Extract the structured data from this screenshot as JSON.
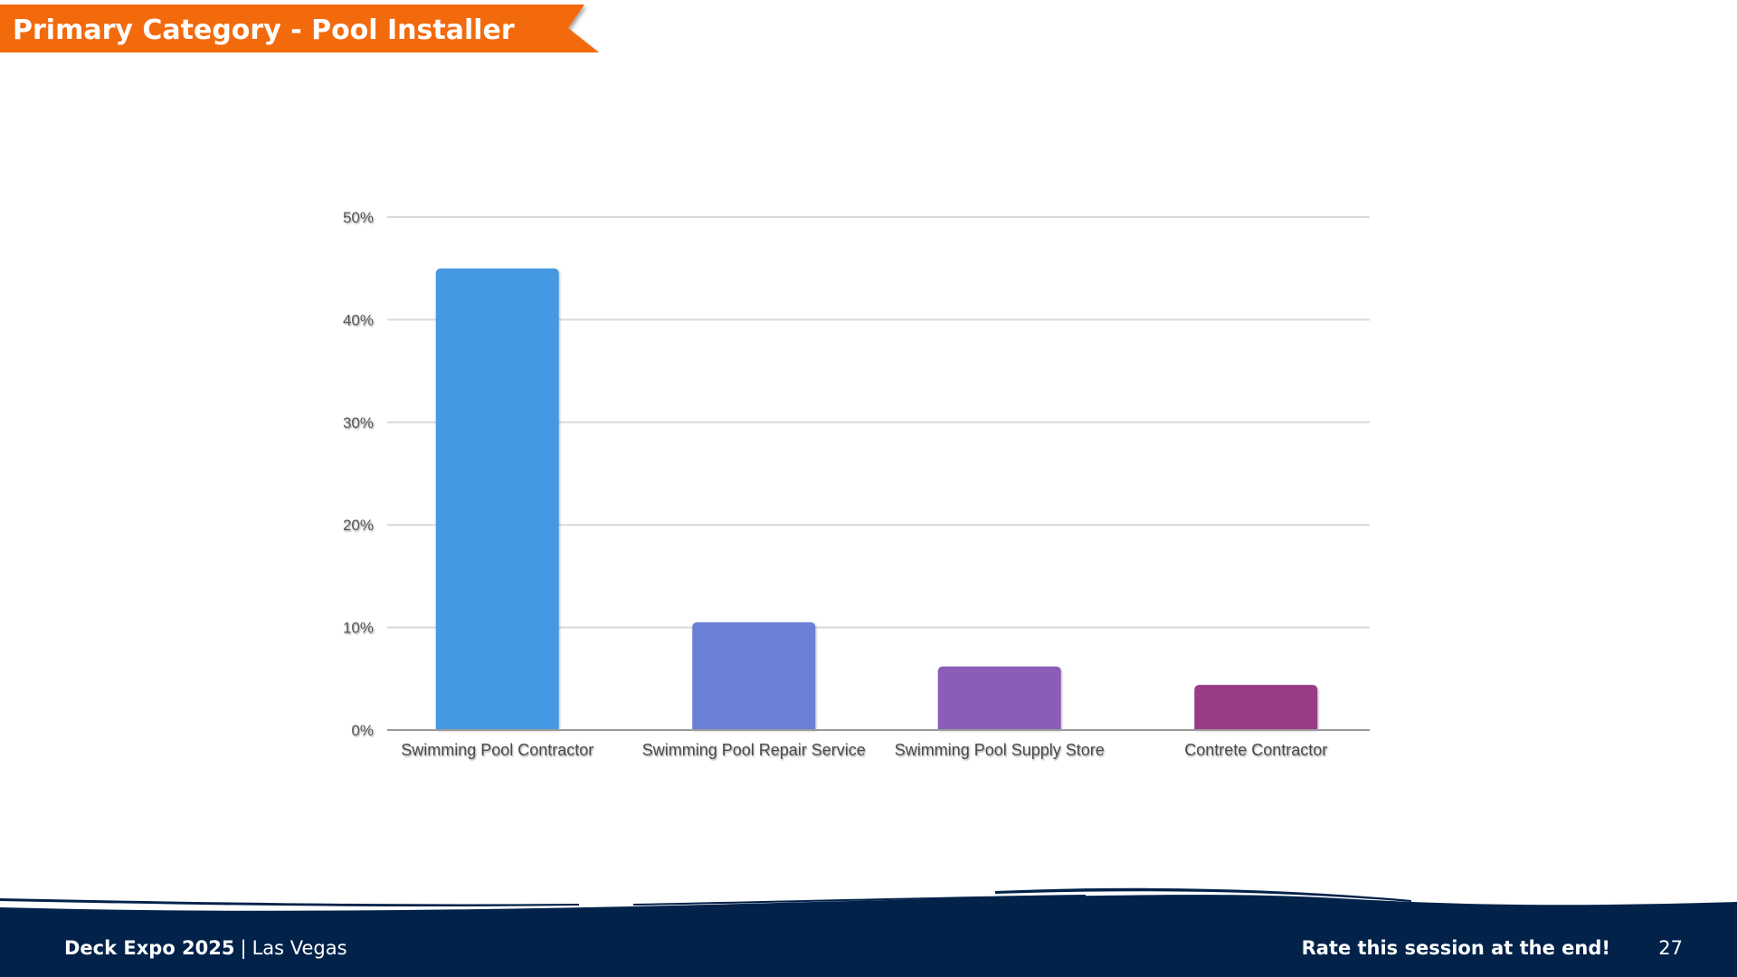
{
  "slide": {
    "title": "Primary Category - Pool Installer",
    "colors": {
      "banner": "#f36a0c",
      "footer": "#02224a"
    }
  },
  "chart_data": {
    "type": "bar",
    "categories": [
      "Swimming Pool Contractor",
      "Swimming Pool Repair Service",
      "Swimming Pool Supply Store",
      "Contrete Contractor"
    ],
    "values": [
      45,
      10.5,
      6.2,
      4.4
    ],
    "colors": [
      "#4599e3",
      "#6a7fd6",
      "#8a5db8",
      "#993a86"
    ],
    "yticks": [
      "0%",
      "10%",
      "20%",
      "30%",
      "40%",
      "50%"
    ],
    "ylim": [
      0,
      50
    ],
    "unit": "%",
    "grid": true,
    "legend": "none"
  },
  "footer": {
    "event": "Deck Expo 2025",
    "separator": "|",
    "location": "Las Vegas",
    "rate_text": "Rate this session at the end!",
    "page_number": "27"
  }
}
